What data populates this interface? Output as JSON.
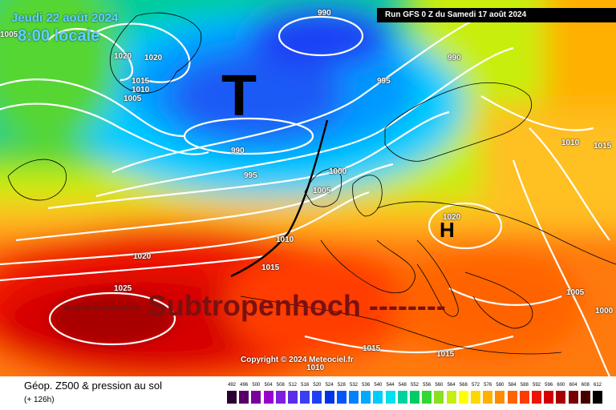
{
  "header": {
    "date": "Jeudi 22 août 2024",
    "time": "8:00 locale",
    "run": "Run GFS 0 Z du Samedi 17 août 2024"
  },
  "map": {
    "low_marker": "T",
    "high_marker": "H",
    "annotation": "-------- Subtropenhoch --------",
    "copyright": "Copyright © 2024 Meteociel.fr",
    "isobar_labels": [
      "1005",
      "990",
      "1020",
      "1020",
      "1015",
      "1010",
      "1005",
      "995",
      "990",
      "990",
      "995",
      "1000",
      "1005",
      "1010",
      "1015",
      "1010",
      "1015",
      "1020",
      "1020",
      "1025",
      "1005",
      "1000",
      "1015",
      "1015",
      "1010"
    ]
  },
  "footer": {
    "field": "Géop. Z500 & pression au sol",
    "lead": "(+ 126h)"
  },
  "scale": {
    "values": [
      "492",
      "496",
      "500",
      "504",
      "508",
      "512",
      "516",
      "520",
      "524",
      "528",
      "532",
      "536",
      "540",
      "544",
      "548",
      "552",
      "556",
      "560",
      "564",
      "568",
      "572",
      "576",
      "580",
      "584",
      "588",
      "592",
      "596",
      "600",
      "604",
      "608",
      "612"
    ],
    "colors": [
      "#2a0033",
      "#550066",
      "#7a0099",
      "#9900cc",
      "#7d1fe0",
      "#5a2ee8",
      "#3a3ff0",
      "#1e40f5",
      "#0033e6",
      "#0055ff",
      "#0080ff",
      "#00a8ff",
      "#00ccff",
      "#00e0f0",
      "#00d2a0",
      "#00cc66",
      "#33d633",
      "#88e022",
      "#c8ee11",
      "#ffff00",
      "#ffd700",
      "#ffb000",
      "#ff8c00",
      "#ff6400",
      "#ff3c00",
      "#f01400",
      "#d40000",
      "#a80000",
      "#7a0000",
      "#440000",
      "#000000"
    ]
  }
}
